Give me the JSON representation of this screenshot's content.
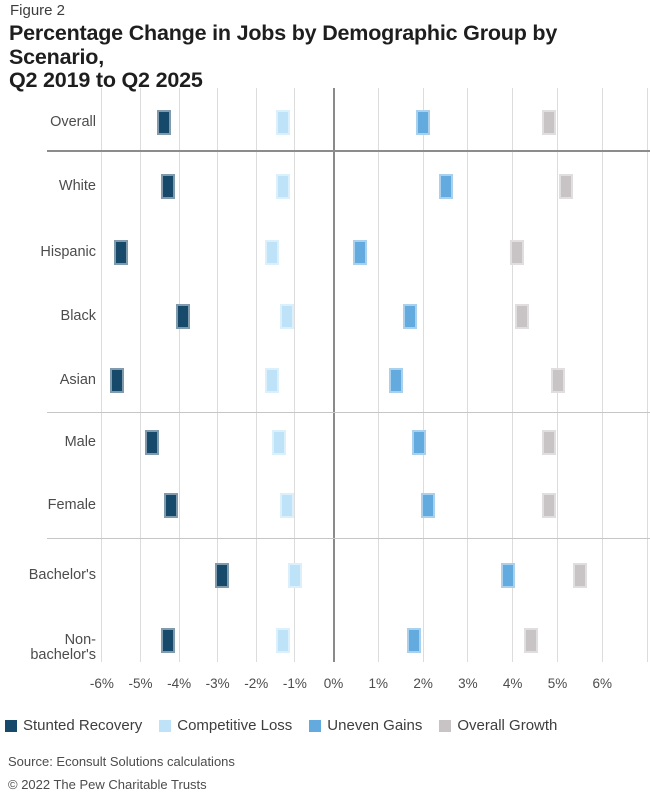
{
  "figure_label": "Figure 2",
  "title_line1": "Percentage Change in Jobs by Demographic Group by Scenario,",
  "title_line2": "Q2 2019 to Q2 2025",
  "source": "Source: Econsult Solutions calculations",
  "copyright": "© 2022 The Pew Charitable Trusts",
  "colors": {
    "background": "#ffffff",
    "gridline": "#dcdcdc",
    "zero_line": "#8a8a8a",
    "separator_dark": "#8c8c8c",
    "separator_light": "#c6c6c6",
    "title_text": "#1e1e1e",
    "body_text": "#4c4c4c"
  },
  "chart_data": {
    "type": "scatter",
    "subtype": "dot-plot-rows",
    "title": "Percentage Change in Jobs by Demographic Group by Scenario, Q2 2019 to Q2 2025",
    "xlabel": "",
    "ylabel": "",
    "unit": "%",
    "grid": true,
    "legend_position": "bottom",
    "categories": [
      "Overall",
      "White",
      "Hispanic",
      "Black",
      "Asian",
      "Male",
      "Female",
      "Bachelor's",
      "Non-bachelor's"
    ],
    "group_separators_after": [
      "Overall",
      "Asian",
      "Female"
    ],
    "x_axis": {
      "min": -6,
      "max": 6,
      "tick_step": 1,
      "tick_labels": [
        "-6%",
        "-5%",
        "-4%",
        "-3%",
        "-2%",
        "-1%",
        "0%",
        "1%",
        "2%",
        "3%",
        "4%",
        "5%",
        "6%"
      ]
    },
    "series": [
      {
        "name": "Stunted Recovery",
        "color": "#17496B",
        "values": [
          -4.4,
          -4.3,
          -5.5,
          -3.9,
          -5.6,
          -4.7,
          -4.2,
          -2.9,
          -4.3
        ]
      },
      {
        "name": "Competitive Loss",
        "color": "#BEE3F8",
        "values": [
          -1.3,
          -1.3,
          -1.6,
          -1.2,
          -1.6,
          -1.4,
          -1.2,
          -1.0,
          -1.3
        ]
      },
      {
        "name": "Uneven Gains",
        "color": "#63ABDF",
        "values": [
          2.0,
          2.5,
          0.6,
          1.7,
          1.4,
          1.9,
          2.1,
          3.9,
          1.8
        ]
      },
      {
        "name": "Overall Growth",
        "color": "#C8C4C5",
        "values": [
          4.8,
          5.2,
          4.1,
          4.2,
          5.0,
          4.8,
          4.8,
          5.5,
          4.4
        ]
      }
    ]
  }
}
